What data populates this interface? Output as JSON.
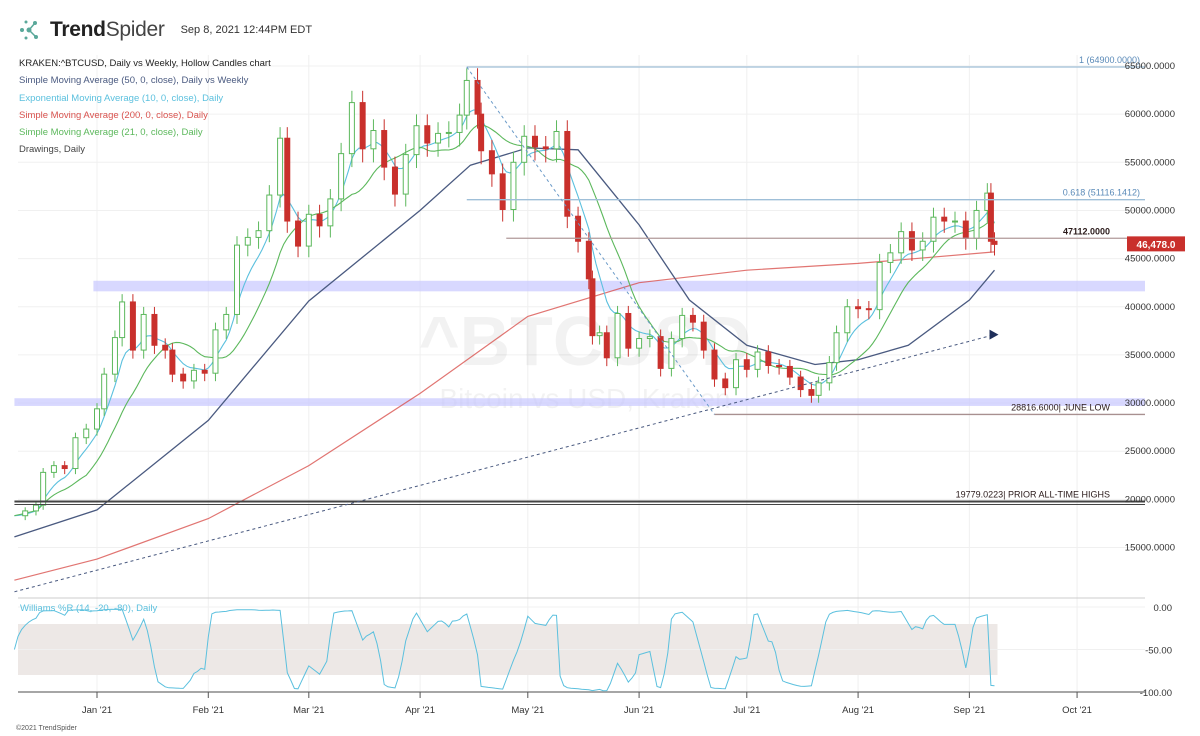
{
  "header": {
    "brand": "TrendSpider",
    "timestamp": "Sep 8, 2021 12:44PM EDT"
  },
  "legend": {
    "title": "KRAKEN:^BTCUSD, Daily vs Weekly, Hollow Candles chart",
    "items": [
      {
        "label": "Simple Moving Average (50, 0, close), Daily vs Weekly",
        "color": "#4a5a80"
      },
      {
        "label": "Exponential Moving Average (10, 0, close), Daily",
        "color": "#5bc0de"
      },
      {
        "label": "Simple Moving Average (200, 0, close), Daily",
        "color": "#d9534f"
      },
      {
        "label": "Simple Moving Average (21, 0, close), Daily",
        "color": "#5cb85c"
      },
      {
        "label": "Drawings, Daily",
        "color": "#333333"
      }
    ]
  },
  "watermark": {
    "symbol": "^BTCUSD",
    "name": "Bitcoin vs USD, Kraken"
  },
  "footer": {
    "copyright": "©2021 TrendSpider"
  },
  "colors": {
    "up": "#5cb85c",
    "down": "#c9302c",
    "zone": "#c8c8ff",
    "price_tag": "#c9302c"
  },
  "chart_data": {
    "type": "candlestick",
    "symbol": "KRAKEN:^BTCUSD",
    "y_ticks": [
      "65000.0000",
      "60000.0000",
      "55000.0000",
      "50000.0000",
      "45000.0000",
      "40000.0000",
      "35000.0000",
      "30000.0000",
      "25000.0000",
      "20000.0000",
      "15000.0000"
    ],
    "y_tick_values": [
      65000,
      60000,
      55000,
      50000,
      45000,
      40000,
      35000,
      30000,
      25000,
      20000,
      15000
    ],
    "x_ticks": [
      {
        "label": "Jan '21",
        "date": "2021-01-01"
      },
      {
        "label": "Feb '21",
        "date": "2021-02-01"
      },
      {
        "label": "Mar '21",
        "date": "2021-03-01"
      },
      {
        "label": "Apr '21",
        "date": "2021-04-01"
      },
      {
        "label": "May '21",
        "date": "2021-05-01"
      },
      {
        "label": "Jun '21",
        "date": "2021-06-01"
      },
      {
        "label": "Jul '21",
        "date": "2021-07-01"
      },
      {
        "label": "Aug '21",
        "date": "2021-08-01"
      },
      {
        "label": "Sep '21",
        "date": "2021-09-01"
      },
      {
        "label": "Oct '21",
        "date": "2021-10-01"
      }
    ],
    "closes": [
      [
        "2020-12-09",
        18300
      ],
      [
        "2020-12-12",
        18800
      ],
      [
        "2020-12-15",
        19400
      ],
      [
        "2020-12-17",
        22800
      ],
      [
        "2020-12-20",
        23500
      ],
      [
        "2020-12-23",
        23200
      ],
      [
        "2020-12-26",
        26400
      ],
      [
        "2020-12-29",
        27300
      ],
      [
        "2021-01-01",
        29400
      ],
      [
        "2021-01-03",
        33000
      ],
      [
        "2021-01-06",
        36800
      ],
      [
        "2021-01-08",
        40500
      ],
      [
        "2021-01-11",
        35500
      ],
      [
        "2021-01-14",
        39200
      ],
      [
        "2021-01-17",
        36000
      ],
      [
        "2021-01-20",
        35500
      ],
      [
        "2021-01-22",
        33000
      ],
      [
        "2021-01-25",
        32300
      ],
      [
        "2021-01-28",
        33400
      ],
      [
        "2021-01-31",
        33100
      ],
      [
        "2021-02-03",
        37600
      ],
      [
        "2021-02-06",
        39200
      ],
      [
        "2021-02-09",
        46400
      ],
      [
        "2021-02-12",
        47200
      ],
      [
        "2021-02-15",
        47900
      ],
      [
        "2021-02-18",
        51600
      ],
      [
        "2021-02-21",
        57500
      ],
      [
        "2021-02-23",
        48900
      ],
      [
        "2021-02-26",
        46300
      ],
      [
        "2021-03-01",
        49600
      ],
      [
        "2021-03-04",
        48400
      ],
      [
        "2021-03-07",
        51200
      ],
      [
        "2021-03-10",
        55900
      ],
      [
        "2021-03-13",
        61200
      ],
      [
        "2021-03-16",
        56400
      ],
      [
        "2021-03-19",
        58300
      ],
      [
        "2021-03-22",
        54500
      ],
      [
        "2021-03-25",
        51700
      ],
      [
        "2021-03-28",
        55800
      ],
      [
        "2021-03-31",
        58800
      ],
      [
        "2021-04-03",
        57000
      ],
      [
        "2021-04-06",
        58000
      ],
      [
        "2021-04-09",
        58100
      ],
      [
        "2021-04-12",
        59900
      ],
      [
        "2021-04-14",
        63500
      ],
      [
        "2021-04-17",
        60000
      ],
      [
        "2021-04-18",
        56200
      ],
      [
        "2021-04-21",
        53800
      ],
      [
        "2021-04-24",
        50100
      ],
      [
        "2021-04-27",
        55000
      ],
      [
        "2021-04-30",
        57700
      ],
      [
        "2021-05-03",
        56600
      ],
      [
        "2021-05-06",
        56400
      ],
      [
        "2021-05-09",
        58200
      ],
      [
        "2021-05-12",
        49400
      ],
      [
        "2021-05-15",
        46800
      ],
      [
        "2021-05-18",
        42900
      ],
      [
        "2021-05-19",
        37000
      ],
      [
        "2021-05-21",
        37300
      ],
      [
        "2021-05-23",
        34700
      ],
      [
        "2021-05-26",
        39300
      ],
      [
        "2021-05-29",
        35700
      ],
      [
        "2021-06-01",
        36700
      ],
      [
        "2021-06-04",
        36900
      ],
      [
        "2021-06-07",
        33600
      ],
      [
        "2021-06-10",
        36700
      ],
      [
        "2021-06-13",
        39100
      ],
      [
        "2021-06-16",
        38400
      ],
      [
        "2021-06-19",
        35500
      ],
      [
        "2021-06-22",
        32500
      ],
      [
        "2021-06-25",
        31600
      ],
      [
        "2021-06-28",
        34500
      ],
      [
        "2021-07-01",
        33500
      ],
      [
        "2021-07-04",
        35300
      ],
      [
        "2021-07-07",
        33900
      ],
      [
        "2021-07-10",
        33800
      ],
      [
        "2021-07-13",
        32700
      ],
      [
        "2021-07-16",
        31400
      ],
      [
        "2021-07-19",
        30800
      ],
      [
        "2021-07-21",
        32100
      ],
      [
        "2021-07-24",
        34200
      ],
      [
        "2021-07-26",
        37300
      ],
      [
        "2021-07-29",
        40000
      ],
      [
        "2021-08-01",
        39800
      ],
      [
        "2021-08-04",
        39700
      ],
      [
        "2021-08-07",
        44600
      ],
      [
        "2021-08-10",
        45600
      ],
      [
        "2021-08-13",
        47800
      ],
      [
        "2021-08-16",
        45900
      ],
      [
        "2021-08-19",
        46800
      ],
      [
        "2021-08-22",
        49300
      ],
      [
        "2021-08-25",
        48900
      ],
      [
        "2021-08-28",
        48900
      ],
      [
        "2021-08-31",
        47100
      ],
      [
        "2021-09-03",
        50000
      ],
      [
        "2021-09-06",
        51800
      ],
      [
        "2021-09-07",
        46800
      ],
      [
        "2021-09-08",
        46478
      ]
    ],
    "last_price": "46,478.0",
    "sma200": [
      [
        "2020-12-09",
        11600
      ],
      [
        "2021-01-01",
        13800
      ],
      [
        "2021-02-01",
        18000
      ],
      [
        "2021-03-01",
        23500
      ],
      [
        "2021-04-01",
        31000
      ],
      [
        "2021-05-01",
        39000
      ],
      [
        "2021-06-01",
        42500
      ],
      [
        "2021-07-01",
        43800
      ],
      [
        "2021-08-01",
        44500
      ],
      [
        "2021-09-08",
        45700
      ]
    ],
    "sma50": [
      [
        "2020-12-09",
        16100
      ],
      [
        "2021-01-01",
        18900
      ],
      [
        "2021-02-01",
        28200
      ],
      [
        "2021-03-01",
        40600
      ],
      [
        "2021-04-01",
        50000
      ],
      [
        "2021-04-15",
        54700
      ],
      [
        "2021-05-01",
        56500
      ],
      [
        "2021-05-15",
        56300
      ],
      [
        "2021-06-01",
        48500
      ],
      [
        "2021-06-15",
        40700
      ],
      [
        "2021-07-01",
        36000
      ],
      [
        "2021-07-20",
        34000
      ],
      [
        "2021-08-01",
        34500
      ],
      [
        "2021-08-15",
        36000
      ],
      [
        "2021-09-01",
        40700
      ],
      [
        "2021-09-08",
        43800
      ]
    ],
    "drawings": {
      "levels": [
        {
          "label": "1 (64900.0000)",
          "value": 64900,
          "start": "2021-04-14",
          "color": "#9fbfd8"
        },
        {
          "label": "0.618 (51116.1412)",
          "value": 51116.1412,
          "start": "2021-04-14",
          "color": "#9fbfd8"
        },
        {
          "label": "47112.0000",
          "value": 47112,
          "start": "2021-04-25",
          "color": "#b09a9a"
        },
        {
          "label": "28816.6000| JUNE LOW",
          "value": 28816.6,
          "start": "2021-06-22",
          "color": "#a89090"
        },
        {
          "label": "19779.0223| PRIOR ALL-TIME HIGHS",
          "value": 19779.0223,
          "start": "2020-12-09",
          "color": "#444444"
        }
      ],
      "zones": [
        {
          "low": 41600,
          "high": 42700,
          "start": "2020-12-31"
        },
        {
          "low": 29700,
          "high": 30500,
          "start": "2020-12-09"
        }
      ],
      "trendlines": [
        {
          "from": [
            "2020-12-09",
            10400
          ],
          "to": [
            "2021-09-08",
            37100
          ],
          "arrow": true
        },
        {
          "from": [
            "2021-04-14",
            64900
          ],
          "to": [
            "2021-06-22",
            28816.6
          ],
          "arrow": false
        }
      ]
    },
    "williams_r": {
      "label": "Williams %R (14, -20, -80), Daily",
      "period": 14,
      "upper": -20,
      "lower": -80,
      "y_ticks": [
        "0.00",
        "-50.00",
        "-100.00"
      ],
      "y_tick_values": [
        0,
        -50,
        -100
      ]
    }
  }
}
